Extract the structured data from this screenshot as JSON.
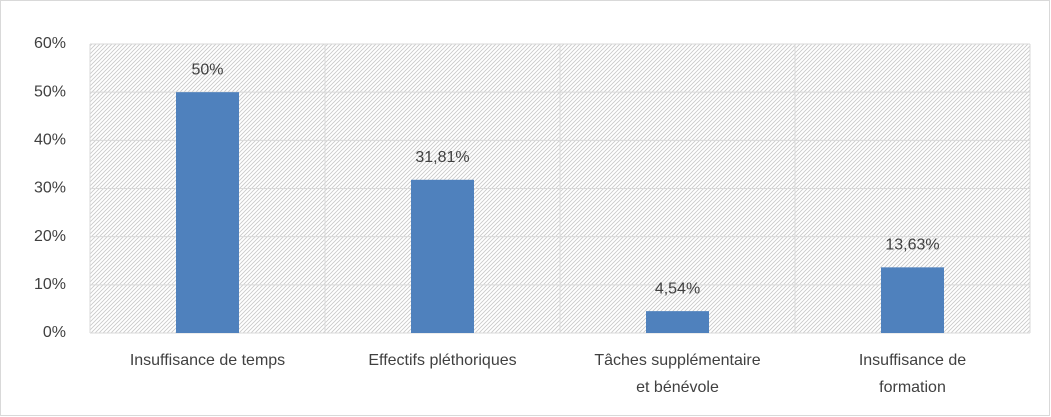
{
  "chart_data": {
    "type": "bar",
    "categories": [
      "Insuffisance de temps",
      "Effectifs pléthoriques",
      "Tâches supplémentaire\net bénévole",
      "Insuffisance de\nformation"
    ],
    "values": [
      50,
      31.81,
      4.54,
      13.63
    ],
    "value_labels": [
      "50%",
      "31,81%",
      "4,54%",
      "13,63%"
    ],
    "color": "#4f81bd",
    "ylim": [
      0,
      60
    ],
    "yticks": [
      {
        "value": 0,
        "label": "0%"
      },
      {
        "value": 10,
        "label": "10%"
      },
      {
        "value": 20,
        "label": "20%"
      },
      {
        "value": 30,
        "label": "30%"
      },
      {
        "value": 40,
        "label": "40%"
      },
      {
        "value": 50,
        "label": "50%"
      },
      {
        "value": 60,
        "label": "60%"
      }
    ],
    "grid": true
  }
}
